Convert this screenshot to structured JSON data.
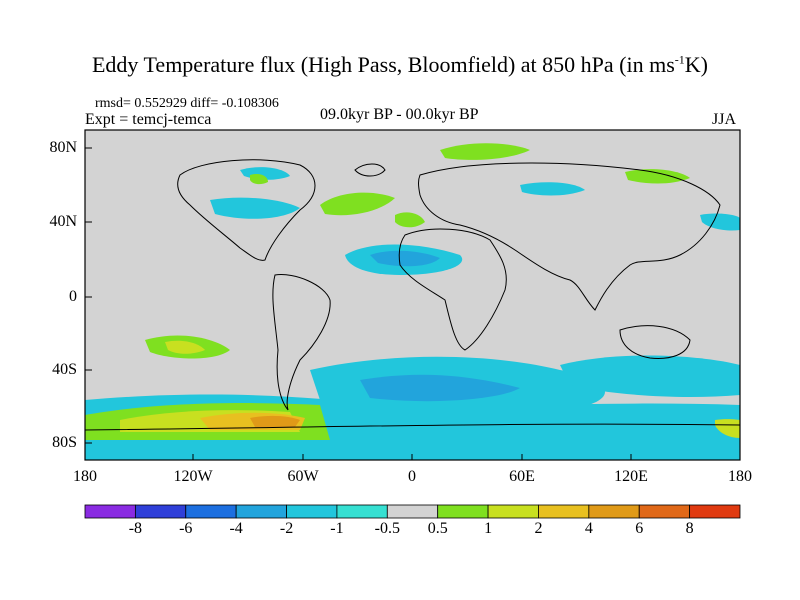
{
  "title": {
    "main": "Eddy Temperature flux (High Pass, Bloomfield) at 850 hPa (in ms",
    "sup": "-1",
    "end": "K)"
  },
  "stats": "rmsd= 0.552929 diff= -0.108306",
  "expt": "Expt = temcj-temca",
  "period": "09.0kyr BP - 00.0kyr BP",
  "season": "JJA",
  "lat_labels": [
    "80N",
    "40N",
    "0",
    "40S",
    "80S"
  ],
  "lon_labels": [
    "180",
    "120W",
    "60W",
    "0",
    "60E",
    "120E",
    "180"
  ],
  "colorbar": {
    "colors": [
      "#8a2be2",
      "#2f3fd8",
      "#1c6fe0",
      "#22a4dc",
      "#22c6dc",
      "#36e0d2",
      "#d3d3d3",
      "#7fe020",
      "#c8e020",
      "#e8c020",
      "#e09a18",
      "#e06818",
      "#e03a10"
    ],
    "labels": [
      "-8",
      "-6",
      "-4",
      "-2",
      "-1",
      "-0.5",
      "0.5",
      "1",
      "2",
      "4",
      "6",
      "8"
    ]
  }
}
